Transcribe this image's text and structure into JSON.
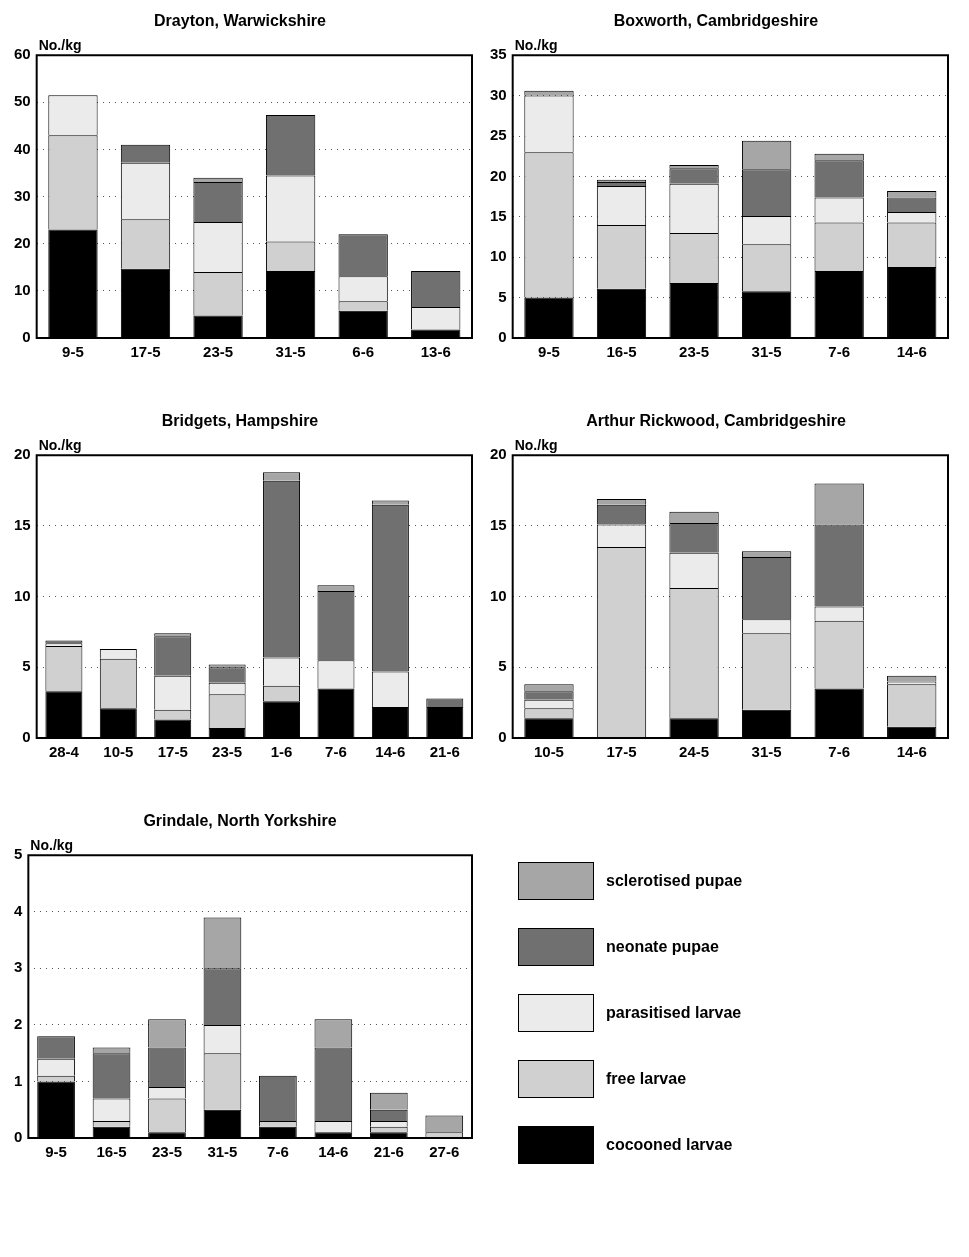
{
  "chart_data": [
    {
      "type": "bar",
      "title": "Drayton, Warwickshire",
      "ylabel": "No./kg",
      "stacked": true,
      "grid": "y",
      "categories": [
        "9-5",
        "17-5",
        "23-5",
        "31-5",
        "6-6",
        "13-6"
      ],
      "ylim": [
        0,
        60
      ],
      "yticks": [
        0,
        10,
        20,
        30,
        40,
        50,
        60
      ],
      "series": [
        {
          "color": "#000000",
          "values": [
            23,
            14.7,
            4.8,
            14.2,
            5.8,
            1.8
          ]
        },
        {
          "color": "#d0d0d0",
          "values": [
            20,
            10.5,
            9.2,
            6.3,
            2,
            0
          ]
        },
        {
          "color": "#ebebeb",
          "values": [
            8.5,
            12,
            10.6,
            14,
            5.3,
            4.8
          ]
        },
        {
          "color": "#707070",
          "values": [
            0,
            3.8,
            8.5,
            12.8,
            8.9,
            7.6
          ]
        },
        {
          "color": "#a6a6a6",
          "values": [
            0,
            0,
            0.9,
            0,
            0,
            0
          ]
        }
      ]
    },
    {
      "type": "bar",
      "title": "Boxworth, Cambridgeshire",
      "ylabel": "No./kg",
      "stacked": true,
      "grid": "y",
      "categories": [
        "9-5",
        "16-5",
        "23-5",
        "31-5",
        "7-6",
        "14-6"
      ],
      "ylim": [
        0,
        35
      ],
      "yticks": [
        0,
        5,
        10,
        15,
        20,
        25,
        30,
        35
      ],
      "series": [
        {
          "color": "#000000",
          "values": [
            5,
            6.1,
            6.8,
            5.8,
            8.3,
            8.8
          ]
        },
        {
          "color": "#d0d0d0",
          "values": [
            18,
            7.9,
            6.2,
            5.8,
            6,
            5.5
          ]
        },
        {
          "color": "#ebebeb",
          "values": [
            7,
            4.8,
            6.1,
            3.5,
            3.1,
            1.3
          ]
        },
        {
          "color": "#707070",
          "values": [
            0,
            0.5,
            1.9,
            5.8,
            4.6,
            1.8
          ]
        },
        {
          "color": "#a6a6a6",
          "values": [
            0.6,
            0.3,
            0.4,
            3.5,
            0.8,
            0.8
          ]
        }
      ]
    },
    {
      "type": "bar",
      "title": "Bridgets, Hampshire",
      "ylabel": "No./kg",
      "stacked": true,
      "grid": "y",
      "categories": [
        "28-4",
        "10-5",
        "17-5",
        "23-5",
        "1-6",
        "7-6",
        "14-6",
        "21-6"
      ],
      "ylim": [
        0,
        20
      ],
      "yticks": [
        0,
        5,
        10,
        15,
        20
      ],
      "series": [
        {
          "color": "#000000",
          "values": [
            3.3,
            2.1,
            1.3,
            0.7,
            2.6,
            3.5,
            2.2,
            2.2
          ]
        },
        {
          "color": "#d0d0d0",
          "values": [
            3.2,
            3.5,
            0.7,
            2.4,
            1.1,
            0,
            0,
            0
          ]
        },
        {
          "color": "#ebebeb",
          "values": [
            0.2,
            0.7,
            2.4,
            0.8,
            2,
            2,
            2.5,
            null
          ]
        },
        {
          "color": "#707070",
          "values": [
            0.2,
            0,
            2.8,
            1.1,
            12.5,
            4.9,
            11.8,
            0.6
          ]
        },
        {
          "color": "#a6a6a6",
          "values": [
            0,
            0,
            0.2,
            0.2,
            0.6,
            0.4,
            0.3,
            0
          ]
        }
      ]
    },
    {
      "type": "bar",
      "title": "Arthur Rickwood, Cambridgeshire",
      "ylabel": "No./kg",
      "stacked": true,
      "grid": "y",
      "categories": [
        "10-5",
        "17-5",
        "24-5",
        "31-5",
        "7-6",
        "14-6"
      ],
      "ylim": [
        0,
        20
      ],
      "yticks": [
        0,
        5,
        10,
        15,
        20
      ],
      "series": [
        {
          "color": "#000000",
          "values": [
            1.4,
            0,
            1.4,
            2,
            3.5,
            0.8
          ]
        },
        {
          "color": "#d0d0d0",
          "values": [
            0.7,
            13.5,
            9.2,
            5.4,
            4.8,
            3
          ]
        },
        {
          "color": "#ebebeb",
          "values": [
            0.6,
            1.6,
            2.5,
            1,
            1,
            0.2
          ]
        },
        {
          "color": "#707070",
          "values": [
            0.6,
            1.4,
            2.1,
            4.4,
            5.8,
            0
          ]
        },
        {
          "color": "#a6a6a6",
          "values": [
            0.5,
            0.4,
            0.8,
            0.4,
            2.9,
            0.4
          ]
        }
      ]
    },
    {
      "type": "bar",
      "title": "Grindale, North Yorkshire",
      "ylabel": "No./kg",
      "stacked": true,
      "grid": "y",
      "legend": "right",
      "categories": [
        "9-5",
        "16-5",
        "23-5",
        "31-5",
        "7-6",
        "14-6",
        "21-6",
        "27-6"
      ],
      "ylim": [
        0,
        5
      ],
      "yticks": [
        0,
        1,
        2,
        3,
        4,
        5
      ],
      "series": [
        {
          "name": "cocooned larvae",
          "color": "#000000",
          "values": [
            1,
            0.2,
            0.1,
            0.5,
            0.2,
            0.1,
            0.1,
            0
          ]
        },
        {
          "name": "free larvae",
          "color": "#d0d0d0",
          "values": [
            0.1,
            0.1,
            0.6,
            1,
            0.1,
            0,
            0.1,
            0.1
          ]
        },
        {
          "name": "parasitised larvae",
          "color": "#ebebeb",
          "values": [
            0.3,
            0.4,
            0.2,
            0.5,
            0,
            0.2,
            0.1,
            0
          ]
        },
        {
          "name": "neonate pupae",
          "color": "#707070",
          "values": [
            0.4,
            0.8,
            0.7,
            1,
            0.8,
            1.3,
            0.2,
            0
          ]
        },
        {
          "name": "sclerotised pupae",
          "color": "#a6a6a6",
          "values": [
            0,
            0.1,
            0.5,
            0.9,
            0,
            0.5,
            0.3,
            0.3
          ]
        }
      ]
    }
  ]
}
